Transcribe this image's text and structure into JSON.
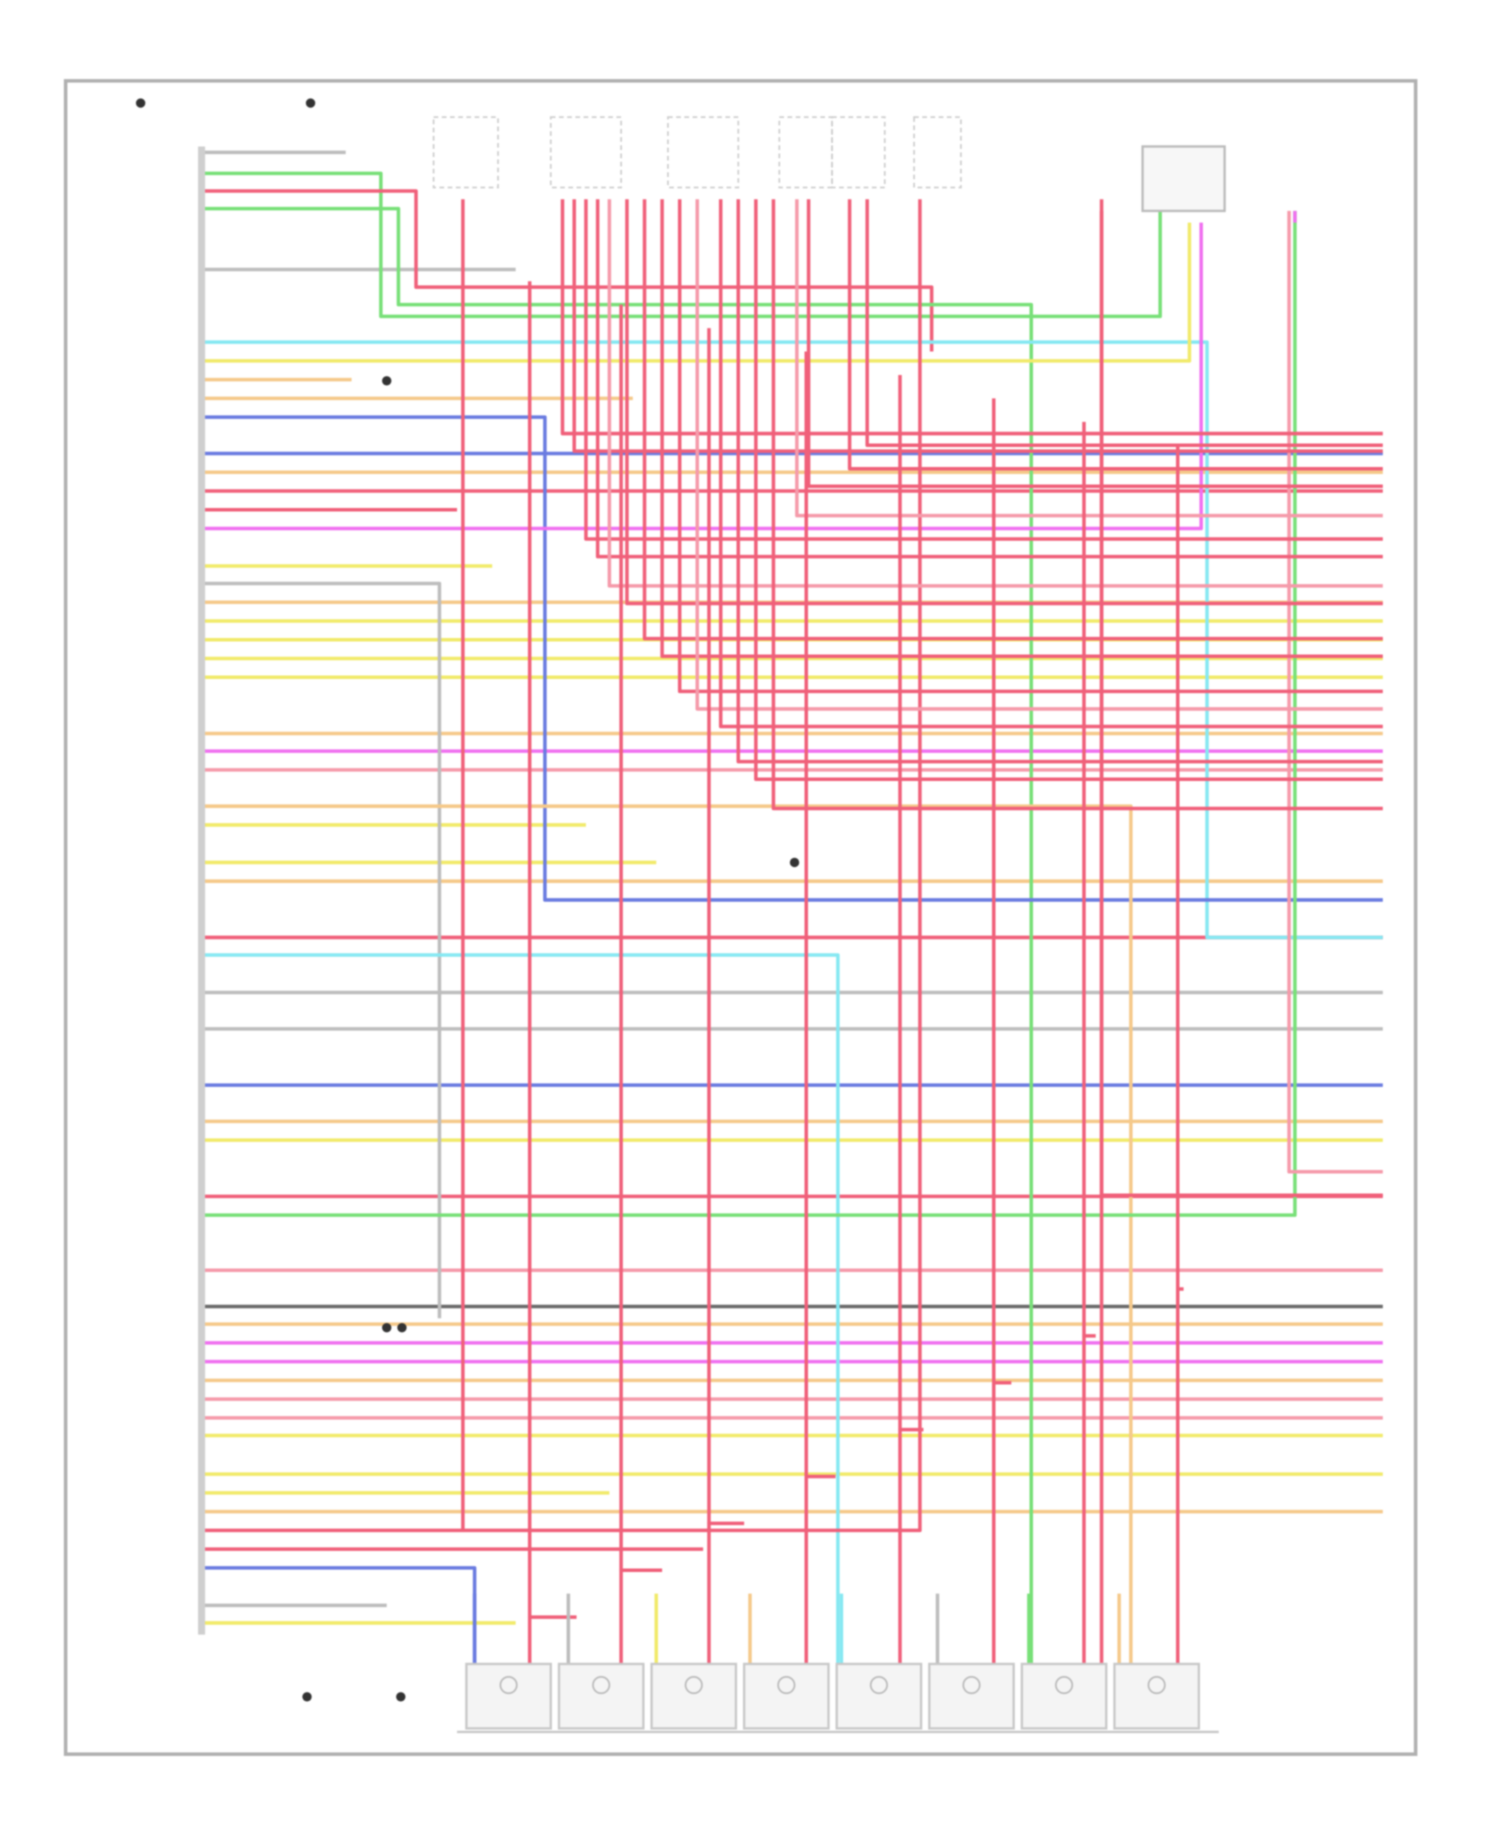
{
  "diagram": {
    "type": "wiring-schematic",
    "text_legible": false,
    "frame_color": "#b0b0b0",
    "component_fill": "#f4f4f4",
    "wire_colors": {
      "red": "#f0607a",
      "pink": "#f59aaa",
      "green": "#78e078",
      "yellow": "#f1ea6a",
      "orange": "#f5c98a",
      "blue": "#6a7be0",
      "cyan": "#86e8f2",
      "magenta": "#f070f0",
      "gray": "#bdbdbd",
      "black": "#6a6a6a"
    },
    "injector_count": 8
  }
}
